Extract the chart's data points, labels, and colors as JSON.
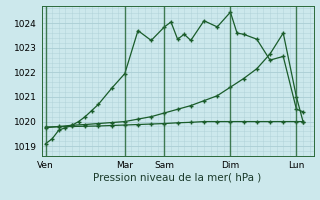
{
  "background_color": "#cce8ec",
  "grid_color": "#aacdd4",
  "line_color": "#1a5c2a",
  "xlabel": "Pression niveau de la mer( hPa )",
  "ylim": [
    1018.6,
    1024.7
  ],
  "yticks": [
    1019,
    1020,
    1021,
    1022,
    1023,
    1024
  ],
  "x_day_labels": [
    "Ven",
    "Mar",
    "Sam",
    "Dim",
    "Lun"
  ],
  "x_day_positions": [
    0,
    6,
    9,
    14,
    19
  ],
  "vline_color": "#2a6a3a",
  "series1_x": [
    0,
    0.5,
    1,
    1.5,
    2,
    2.5,
    3,
    3.5,
    4,
    5,
    6,
    7,
    8,
    9,
    9.5,
    10,
    10.5,
    11,
    12,
    13,
    14,
    14.5,
    15,
    16,
    17,
    18,
    19,
    19.5
  ],
  "series1_y": [
    1019.1,
    1019.3,
    1019.65,
    1019.75,
    1019.85,
    1020.0,
    1020.2,
    1020.45,
    1020.7,
    1021.35,
    1021.95,
    1023.7,
    1023.3,
    1023.85,
    1024.05,
    1023.35,
    1023.55,
    1023.3,
    1024.1,
    1023.85,
    1024.45,
    1023.6,
    1023.55,
    1023.35,
    1022.5,
    1022.65,
    1020.5,
    1020.4
  ],
  "series2_x": [
    0,
    1,
    2,
    3,
    4,
    5,
    6,
    7,
    8,
    9,
    10,
    11,
    12,
    13,
    14,
    15,
    16,
    17,
    18,
    19,
    19.5
  ],
  "series2_y": [
    1019.75,
    1019.8,
    1019.85,
    1019.88,
    1019.92,
    1019.96,
    1020.0,
    1020.1,
    1020.2,
    1020.35,
    1020.5,
    1020.65,
    1020.85,
    1021.05,
    1021.4,
    1021.75,
    1022.15,
    1022.75,
    1023.6,
    1021.0,
    1020.0
  ],
  "series3_x": [
    0,
    1,
    2,
    3,
    4,
    5,
    6,
    7,
    8,
    9,
    10,
    11,
    12,
    13,
    14,
    15,
    16,
    17,
    18,
    19,
    19.5
  ],
  "series3_y": [
    1019.78,
    1019.79,
    1019.8,
    1019.81,
    1019.82,
    1019.84,
    1019.86,
    1019.88,
    1019.9,
    1019.92,
    1019.95,
    1019.97,
    1020.0,
    1020.0,
    1020.0,
    1020.0,
    1020.0,
    1020.0,
    1020.0,
    1020.0,
    1020.0
  ]
}
